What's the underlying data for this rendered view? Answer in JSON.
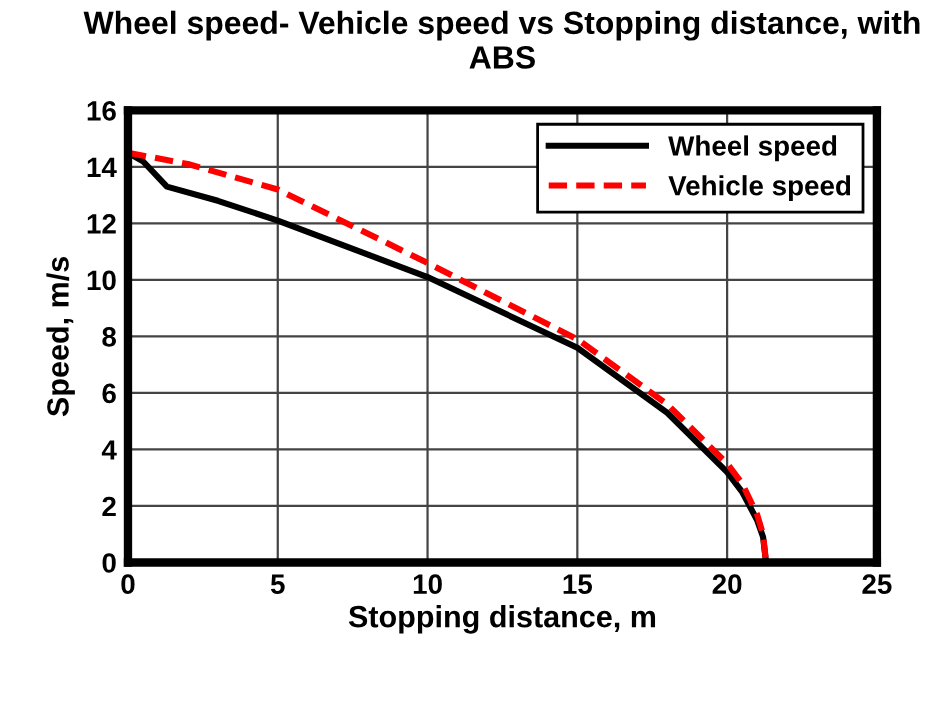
{
  "chart_data": {
    "type": "line",
    "title": "Wheel speed- Vehicle speed vs Stopping distance, with ABS",
    "xlabel": "Stopping distance, m",
    "ylabel": "Speed, m/s",
    "xlim": [
      0,
      25
    ],
    "xticks": [
      0,
      5,
      10,
      15,
      20,
      25
    ],
    "ylim": [
      0,
      16
    ],
    "yticks": [
      0,
      2,
      4,
      6,
      8,
      10,
      12,
      14,
      16
    ],
    "grid": true,
    "legend": "top right",
    "series": [
      {
        "name": "Wheel speed",
        "color": "#000000",
        "line_style": "solid",
        "x": [
          0,
          0.5,
          1.3,
          3,
          5,
          10,
          15,
          18,
          20,
          20.5,
          21,
          21.2,
          21.3
        ],
        "values": [
          14.5,
          14.2,
          13.3,
          12.8,
          12.1,
          10.1,
          7.6,
          5.3,
          3.2,
          2.5,
          1.5,
          0.9,
          0
        ]
      },
      {
        "name": "Vehicle speed",
        "color": "#ff0000",
        "line_style": "dashed",
        "x": [
          0,
          2,
          5,
          10,
          15,
          18,
          20,
          20.5,
          21,
          21.2,
          21.3
        ],
        "values": [
          14.5,
          14.1,
          13.2,
          10.6,
          7.9,
          5.6,
          3.5,
          2.8,
          1.7,
          1.0,
          0
        ]
      }
    ]
  }
}
